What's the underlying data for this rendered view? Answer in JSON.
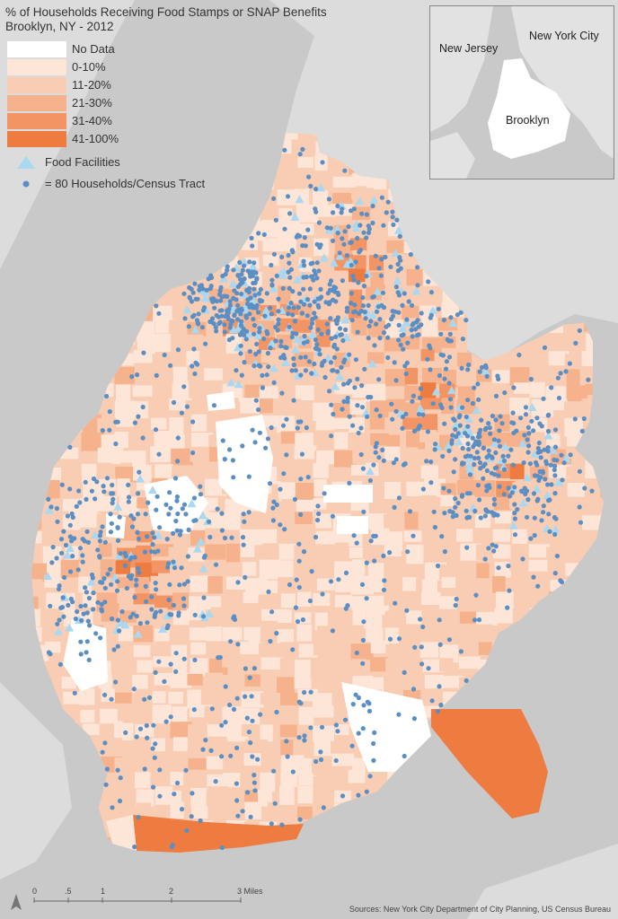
{
  "map": {
    "title_line1": "% of Households Receiving Food Stamps or SNAP Benefits",
    "title_line2": "Brooklyn, NY - 2012"
  },
  "legend": {
    "classes": [
      {
        "label": "No Data",
        "color": "#ffffff"
      },
      {
        "label": "0-10%",
        "color": "#fde5d8"
      },
      {
        "label": "11-20%",
        "color": "#f9cdb3"
      },
      {
        "label": "21-30%",
        "color": "#f6b28c"
      },
      {
        "label": "31-40%",
        "color": "#f29464"
      },
      {
        "label": "41-100%",
        "color": "#ee7b3f"
      }
    ],
    "food_facilities_label": "Food Facilities",
    "food_facilities_color": "#a9d8f0",
    "households_label": "= 80 Households/Census Tract",
    "households_color": "#5b8fc4"
  },
  "inset": {
    "new_jersey": "New Jersey",
    "new_york_city": "New York City",
    "brooklyn": "Brooklyn"
  },
  "scale_bar": {
    "ticks": [
      "0",
      ".5",
      "1",
      "2",
      "3 Miles"
    ],
    "north_icon": "north-arrow-icon"
  },
  "source": "Sources: New York City Department of City Planning, US Census Bureau"
}
